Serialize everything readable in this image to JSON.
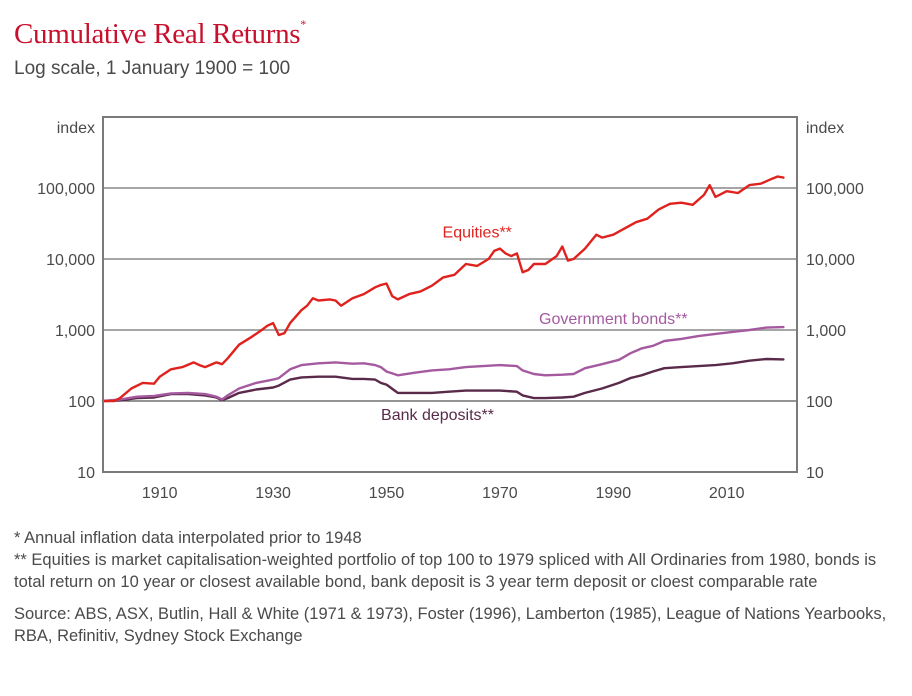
{
  "header": {
    "title": "Cumulative Real Returns",
    "title_marker": "*",
    "subtitle": "Log scale, 1 January 1900 = 100"
  },
  "footnotes": {
    "note1": "* Annual inflation data interpolated prior to 1948",
    "note2": "** Equities is market capitalisation-weighted portfolio of top 100 to 1979 spliced with All Ordinaries from 1980, bonds is total return on 10 year or closest available bond, bank deposit is 3 year term deposit or cloest comparable rate",
    "source": "Source: ABS, ASX, Butlin, Hall & White (1971 & 1973), Foster (1996), Lamberton (1985), League of Nations Yearbooks, RBA, Refinitiv, Sydney Stock Exchange"
  },
  "chart_data": {
    "type": "line",
    "title": "Cumulative Real Returns",
    "subtitle": "Log scale, 1 January 1900 = 100",
    "xlabel": "",
    "ylabel_left": "index",
    "ylabel_right": "index",
    "yscale": "log",
    "xlim": [
      1900,
      2023
    ],
    "ylim": [
      10,
      1000000
    ],
    "x_ticks": [
      1910,
      1930,
      1950,
      1970,
      1990,
      2010
    ],
    "x_tick_labels": [
      "1910",
      "1930",
      "1950",
      "1970",
      "1990",
      "2010"
    ],
    "y_ticks": [
      10,
      100,
      1000,
      10000,
      100000
    ],
    "y_tick_labels": [
      "10",
      "100",
      "1,000",
      "10,000",
      "100,000"
    ],
    "grid": "horizontal",
    "legend": "inline labels",
    "series": [
      {
        "name": "Equities**",
        "color": "#e0221e",
        "label_anchor": {
          "x": 1966,
          "y": 20000
        },
        "x": [
          1900,
          1902,
          1903,
          1905,
          1907,
          1909,
          1910,
          1912,
          1914,
          1916,
          1917,
          1918,
          1920,
          1921,
          1922,
          1924,
          1926,
          1928,
          1929,
          1930,
          1931,
          1932,
          1933,
          1935,
          1936,
          1937,
          1938,
          1940,
          1941,
          1942,
          1944,
          1946,
          1948,
          1949,
          1950,
          1951,
          1952,
          1954,
          1956,
          1958,
          1960,
          1962,
          1964,
          1966,
          1968,
          1969,
          1970,
          1971,
          1972,
          1973,
          1974,
          1975,
          1976,
          1978,
          1980,
          1981,
          1982,
          1983,
          1985,
          1987,
          1988,
          1990,
          1992,
          1994,
          1996,
          1998,
          2000,
          2002,
          2004,
          2006,
          2007,
          2008,
          2010,
          2012,
          2014,
          2016,
          2018,
          2019,
          2020
        ],
        "values": [
          100,
          100,
          110,
          150,
          180,
          175,
          220,
          280,
          300,
          350,
          320,
          300,
          350,
          330,
          400,
          620,
          780,
          1000,
          1150,
          1250,
          850,
          900,
          1250,
          1900,
          2200,
          2800,
          2600,
          2700,
          2600,
          2200,
          2800,
          3200,
          4000,
          4300,
          4500,
          3000,
          2700,
          3200,
          3500,
          4200,
          5500,
          6000,
          8500,
          8000,
          10000,
          13000,
          14000,
          12000,
          11000,
          12000,
          6500,
          7000,
          8500,
          8500,
          11000,
          15000,
          9500,
          10000,
          14000,
          22000,
          20000,
          22000,
          27000,
          33000,
          37000,
          50000,
          60000,
          62000,
          58000,
          80000,
          110000,
          75000,
          90000,
          85000,
          110000,
          115000,
          135000,
          145000,
          140000
        ]
      },
      {
        "name": "Government bonds**",
        "color": "#a55aa0",
        "label_anchor": {
          "x": 1990,
          "y": 1220
        },
        "x": [
          1900,
          1903,
          1906,
          1909,
          1912,
          1915,
          1918,
          1920,
          1921,
          1922,
          1924,
          1927,
          1930,
          1931,
          1933,
          1935,
          1938,
          1941,
          1944,
          1946,
          1948,
          1949,
          1950,
          1952,
          1955,
          1958,
          1961,
          1964,
          1967,
          1970,
          1973,
          1974,
          1976,
          1978,
          1981,
          1983,
          1985,
          1988,
          1991,
          1993,
          1995,
          1997,
          1999,
          2002,
          2005,
          2008,
          2011,
          2014,
          2017,
          2020
        ],
        "values": [
          100,
          105,
          115,
          118,
          128,
          130,
          125,
          115,
          105,
          120,
          150,
          180,
          200,
          210,
          280,
          320,
          340,
          350,
          335,
          340,
          320,
          300,
          260,
          230,
          250,
          270,
          280,
          300,
          310,
          320,
          310,
          270,
          240,
          230,
          235,
          240,
          290,
          330,
          380,
          470,
          550,
          600,
          700,
          750,
          820,
          880,
          940,
          1000,
          1080,
          1100
        ]
      },
      {
        "name": "Bank deposits**",
        "color": "#5a2a4a",
        "label_anchor": {
          "x": 1959,
          "y": 54
        },
        "x": [
          1900,
          1903,
          1906,
          1909,
          1912,
          1915,
          1918,
          1920,
          1921,
          1922,
          1924,
          1927,
          1930,
          1931,
          1933,
          1935,
          1938,
          1941,
          1944,
          1946,
          1948,
          1949,
          1950,
          1952,
          1955,
          1958,
          1961,
          1964,
          1967,
          1970,
          1973,
          1974,
          1976,
          1978,
          1981,
          1983,
          1985,
          1988,
          1991,
          1993,
          1995,
          1997,
          1999,
          2002,
          2005,
          2008,
          2011,
          2014,
          2017,
          2020
        ],
        "values": [
          100,
          102,
          110,
          112,
          125,
          125,
          120,
          112,
          103,
          110,
          130,
          145,
          155,
          165,
          200,
          215,
          220,
          220,
          205,
          205,
          200,
          180,
          170,
          130,
          130,
          130,
          135,
          140,
          140,
          140,
          135,
          120,
          110,
          110,
          112,
          115,
          130,
          150,
          180,
          210,
          230,
          260,
          290,
          300,
          310,
          320,
          340,
          370,
          390,
          385
        ]
      }
    ]
  }
}
